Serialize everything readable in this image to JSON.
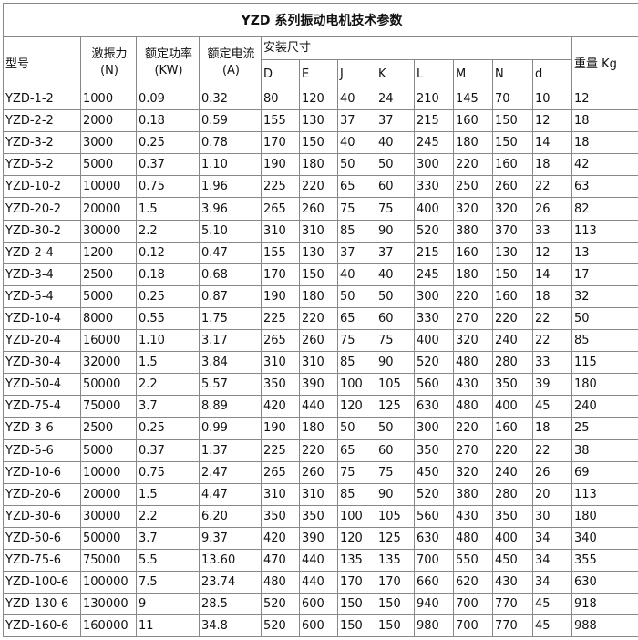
{
  "title": "YZD  系列振动电机技术参数",
  "headers": {
    "model": "型号",
    "force": "激振力",
    "force_unit": "(N)",
    "power": "额定功率",
    "power_unit": "(KW)",
    "current": "额定电流",
    "current_unit": "(A)",
    "install": "安装尺寸",
    "dims": [
      "D",
      "E",
      "J",
      "K",
      "L",
      "M",
      "N",
      "d"
    ],
    "weight": "重量  Kg"
  },
  "rows": [
    [
      "YZD-1-2",
      "1000",
      "0.09",
      "0.32",
      "80",
      "120",
      "40",
      "24",
      "210",
      "145",
      "70",
      "10",
      "12"
    ],
    [
      "YZD-2-2",
      "2000",
      "0.18",
      "0.59",
      "155",
      "130",
      "37",
      "37",
      "215",
      "160",
      "150",
      "12",
      "18"
    ],
    [
      "YZD-3-2",
      "3000",
      "0.25",
      "0.78",
      "170",
      "150",
      "40",
      "40",
      "245",
      "180",
      "150",
      "14",
      "18"
    ],
    [
      "YZD-5-2",
      "5000",
      "0.37",
      "1.10",
      "190",
      "180",
      "50",
      "50",
      "300",
      "220",
      "160",
      "18",
      "42"
    ],
    [
      "YZD-10-2",
      "10000",
      "0.75",
      "1.96",
      "225",
      "220",
      "65",
      "60",
      "330",
      "250",
      "260",
      "22",
      "63"
    ],
    [
      "YZD-20-2",
      "20000",
      "1.5",
      "3.96",
      "265",
      "260",
      "75",
      "75",
      "400",
      "320",
      "320",
      "26",
      "82"
    ],
    [
      "YZD-30-2",
      "30000",
      "2.2",
      "5.10",
      "310",
      "310",
      "85",
      "90",
      "520",
      "380",
      "370",
      "33",
      "113"
    ],
    [
      "YZD-2-4",
      "1200",
      "0.12",
      "0.47",
      "155",
      "130",
      "37",
      "37",
      "215",
      "160",
      "130",
      "12",
      "13"
    ],
    [
      "YZD-3-4",
      "2500",
      "0.18",
      "0.68",
      "170",
      "150",
      "40",
      "40",
      "245",
      "180",
      "150",
      "14",
      "17"
    ],
    [
      "YZD-5-4",
      "5000",
      "0.25",
      "0.87",
      "190",
      "180",
      "50",
      "50",
      "300",
      "220",
      "160",
      "18",
      "32"
    ],
    [
      "YZD-10-4",
      "8000",
      "0.55",
      "1.75",
      "225",
      "220",
      "65",
      "60",
      "330",
      "270",
      "220",
      "22",
      "50"
    ],
    [
      "YZD-20-4",
      "16000",
      "1.10",
      "3.17",
      "265",
      "260",
      "75",
      "75",
      "400",
      "320",
      "240",
      "22",
      "85"
    ],
    [
      "YZD-30-4",
      "32000",
      "1.5",
      "3.84",
      "310",
      "310",
      "85",
      "90",
      "520",
      "480",
      "280",
      "33",
      "115"
    ],
    [
      "YZD-50-4",
      "50000",
      "2.2",
      "5.57",
      "350",
      "390",
      "100",
      "105",
      "560",
      "430",
      "350",
      "39",
      "180"
    ],
    [
      "YZD-75-4",
      "75000",
      "3.7",
      "8.89",
      "420",
      "440",
      "120",
      "125",
      "630",
      "480",
      "400",
      "45",
      "240"
    ],
    [
      "YZD-3-6",
      "2500",
      "0.25",
      "0.99",
      "190",
      "180",
      "50",
      "50",
      "300",
      "220",
      "160",
      "18",
      "25"
    ],
    [
      "YZD-5-6",
      "5000",
      "0.37",
      "1.37",
      "225",
      "220",
      "65",
      "60",
      "350",
      "270",
      "220",
      "22",
      "38"
    ],
    [
      "YZD-10-6",
      "10000",
      "0.75",
      "2.47",
      "265",
      "260",
      "75",
      "75",
      "450",
      "320",
      "240",
      "26",
      "69"
    ],
    [
      "YZD-20-6",
      "20000",
      "1.5",
      "4.47",
      "310",
      "310",
      "85",
      "90",
      "520",
      "380",
      "280",
      "20",
      "113"
    ],
    [
      "YZD-30-6",
      "30000",
      "2.2",
      "6.20",
      "350",
      "350",
      "100",
      "105",
      "560",
      "430",
      "350",
      "30",
      "180"
    ],
    [
      "YZD-50-6",
      "50000",
      "3.7",
      "9.37",
      "420",
      "390",
      "120",
      "125",
      "630",
      "480",
      "400",
      "34",
      "340"
    ],
    [
      "YZD-75-6",
      "75000",
      "5.5",
      "13.60",
      "470",
      "440",
      "135",
      "135",
      "700",
      "550",
      "450",
      "34",
      "355"
    ],
    [
      "YZD-100-6",
      "100000",
      "7.5",
      "23.74",
      "480",
      "440",
      "170",
      "170",
      "660",
      "620",
      "430",
      "34",
      "630"
    ],
    [
      "YZD-130-6",
      "130000",
      "9",
      "28.5",
      "520",
      "600",
      "150",
      "150",
      "940",
      "700",
      "770",
      "45",
      "918"
    ],
    [
      "YZD-160-6",
      "160000",
      "11",
      "34.8",
      "520",
      "600",
      "150",
      "150",
      "980",
      "700",
      "770",
      "45",
      "988"
    ]
  ]
}
